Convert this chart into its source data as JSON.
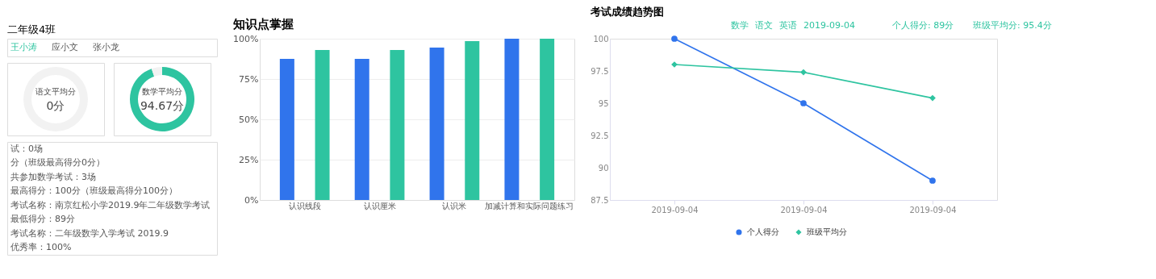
{
  "chart_data": [
    {
      "type": "other",
      "title": "二年级4班",
      "annotations": [
        "王小涛",
        "应小文",
        "张小龙"
      ]
    },
    {
      "type": "donut",
      "categories": [
        null,
        null
      ],
      "values": [
        0,
        100
      ],
      "colors": [
        "#2ec4a0",
        "#f2f2f2"
      ],
      "annotations": [
        "语文平均分",
        "0分"
      ]
    },
    {
      "type": "donut",
      "categories": [
        null,
        null
      ],
      "values": [
        94.67,
        5.33
      ],
      "colors": [
        "#2ec4a0",
        "#f2f2f2"
      ],
      "annotations": [
        "数学平均分",
        "94.67分"
      ]
    },
    {
      "type": "other",
      "annotations": [
        "试：0场",
        "分（班级最高得分0分）",
        "共参加数学考试：3场",
        "最高得分：100分（班级最高得分100分）",
        "考试名称：南京红松小学2019.9年二年级数学考试",
        "最低得分：89分",
        "考试名称：二年级数学入学考试 2019.9",
        "优秀率：100%"
      ]
    },
    {
      "type": "bar",
      "title": "知识点掌握",
      "categories": [
        "认识线段",
        "认识厘米",
        "认识米",
        "加减计算和实际问题练习"
      ],
      "series": [
        {
          "color": "#3074ec",
          "values": [
            87.5,
            87.5,
            94.5,
            100
          ]
        },
        {
          "color": "#2ec4a0",
          "values": [
            93,
            93,
            98.5,
            100
          ]
        }
      ],
      "ylim": [
        0,
        100
      ],
      "yticks": [
        {
          "value": 0,
          "label": "0%"
        },
        {
          "value": 25,
          "label": "25%"
        },
        {
          "value": 50,
          "label": "50%"
        },
        {
          "value": 75,
          "label": "75%"
        },
        {
          "value": 100,
          "label": "100%"
        }
      ],
      "grid": "y",
      "legend": false
    },
    {
      "type": "line",
      "title": "考试成绩趋势图",
      "categories": [
        "2019-09-04",
        "2019-09-04",
        "2019-09-04"
      ],
      "series": [
        {
          "name": "个人得分",
          "color": "#3074ec",
          "marker": "circle",
          "values": [
            100,
            95,
            89
          ]
        },
        {
          "name": "班级平均分",
          "color": "#2ec4a0",
          "marker": "diamond",
          "values": [
            98,
            97.4,
            95.4
          ]
        }
      ],
      "ylim": [
        87.5,
        100
      ],
      "yticks": [
        87.5,
        90,
        92.5,
        95,
        97.5,
        100
      ],
      "grid": false,
      "legend": "bottom",
      "annotations": [
        "数学",
        "语文",
        "英语",
        "2019-09-04",
        "个人得分: 89分",
        "班级平均分: 95.4分"
      ]
    }
  ]
}
